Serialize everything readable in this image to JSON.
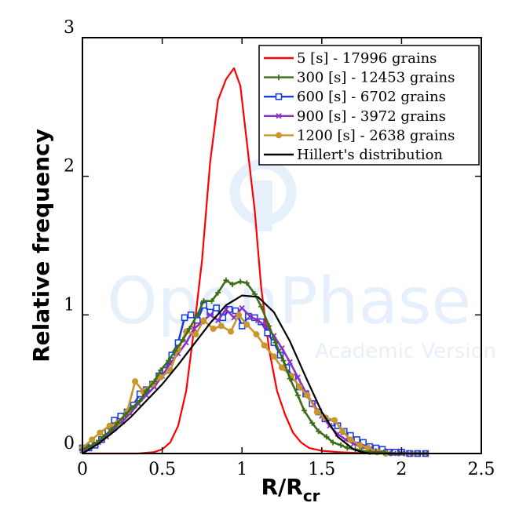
{
  "chart_data": {
    "type": "line",
    "xlabel_main": "R/R",
    "xlabel_sub": "cr",
    "ylabel": "Relative frequency",
    "xlim": [
      0,
      2.5
    ],
    "ylim": [
      0,
      3
    ],
    "x_ticks": [
      0,
      0.5,
      1,
      1.5,
      2,
      2.5
    ],
    "x_tick_labels": [
      "0",
      "0.5",
      "1",
      "1.5",
      "2",
      "2.5"
    ],
    "y_ticks": [
      0,
      1,
      2,
      3
    ],
    "y_tick_labels": [
      "0",
      "1",
      "2",
      "3"
    ],
    "legend_position": "top-right",
    "watermark": {
      "title": "OpenPhase",
      "subtitle": "Academic Version"
    },
    "series": [
      {
        "name": "5 [s] - 17996 grains",
        "color": "#ff0000",
        "marker": "none",
        "x": [
          0,
          0.2,
          0.35,
          0.45,
          0.5,
          0.55,
          0.6,
          0.65,
          0.7,
          0.75,
          0.8,
          0.85,
          0.9,
          0.95,
          0.99,
          1.03,
          1.08,
          1.12,
          1.17,
          1.22,
          1.27,
          1.32,
          1.37,
          1.42,
          1.5,
          1.6,
          1.8,
          2.0
        ],
        "y": [
          0,
          0,
          0,
          0.01,
          0.03,
          0.08,
          0.2,
          0.45,
          0.9,
          1.4,
          2.1,
          2.55,
          2.7,
          2.78,
          2.65,
          2.25,
          1.75,
          1.2,
          0.75,
          0.45,
          0.28,
          0.15,
          0.08,
          0.04,
          0.02,
          0.01,
          0,
          0
        ]
      },
      {
        "name": "300 [s] - 12453 grains",
        "color": "#3b6e14",
        "marker": "plus",
        "x": [
          0,
          0.04,
          0.09,
          0.13,
          0.18,
          0.22,
          0.27,
          0.31,
          0.36,
          0.4,
          0.45,
          0.49,
          0.54,
          0.58,
          0.63,
          0.67,
          0.72,
          0.76,
          0.81,
          0.85,
          0.9,
          0.94,
          0.99,
          1.03,
          1.08,
          1.12,
          1.17,
          1.21,
          1.26,
          1.3,
          1.35,
          1.39,
          1.44,
          1.48,
          1.53,
          1.57,
          1.62,
          1.66,
          1.71,
          1.75,
          1.8,
          1.84,
          1.89,
          1.93,
          1.98,
          2.02,
          2.07,
          2.11,
          2.16
        ],
        "y": [
          0.03,
          0.05,
          0.08,
          0.12,
          0.17,
          0.22,
          0.28,
          0.33,
          0.38,
          0.45,
          0.52,
          0.6,
          0.67,
          0.74,
          0.82,
          0.9,
          1.0,
          1.1,
          1.1,
          1.16,
          1.25,
          1.22,
          1.24,
          1.23,
          1.15,
          1.06,
          0.92,
          0.8,
          0.67,
          0.54,
          0.42,
          0.31,
          0.22,
          0.16,
          0.12,
          0.08,
          0.06,
          0.04,
          0.03,
          0.02,
          0.01,
          0.01,
          0.01,
          0,
          0,
          0,
          0,
          0,
          0
        ]
      },
      {
        "name": "600 [s] - 6702 grains",
        "color": "#1a3fe0",
        "marker": "square",
        "x": [
          0,
          0.04,
          0.08,
          0.12,
          0.16,
          0.2,
          0.24,
          0.28,
          0.32,
          0.36,
          0.4,
          0.44,
          0.48,
          0.52,
          0.56,
          0.6,
          0.64,
          0.68,
          0.72,
          0.76,
          0.8,
          0.84,
          0.88,
          0.92,
          0.96,
          1.0,
          1.04,
          1.08,
          1.12,
          1.16,
          1.2,
          1.24,
          1.28,
          1.32,
          1.36,
          1.4,
          1.44,
          1.48,
          1.52,
          1.56,
          1.6,
          1.64,
          1.68,
          1.72,
          1.76,
          1.8,
          1.84,
          1.88,
          1.92,
          1.96,
          2.0,
          2.05,
          2.1,
          2.15
        ],
        "y": [
          0.04,
          0.04,
          0.06,
          0.1,
          0.16,
          0.24,
          0.27,
          0.3,
          0.35,
          0.43,
          0.46,
          0.5,
          0.56,
          0.6,
          0.71,
          0.8,
          0.98,
          1.0,
          0.96,
          1.07,
          1.02,
          1.05,
          0.98,
          1.04,
          1.03,
          0.92,
          0.99,
          0.98,
          0.95,
          0.87,
          0.8,
          0.71,
          0.62,
          0.55,
          0.48,
          0.43,
          0.36,
          0.3,
          0.25,
          0.22,
          0.2,
          0.16,
          0.13,
          0.1,
          0.08,
          0.05,
          0.04,
          0.03,
          0.01,
          0.01,
          0.01,
          0,
          0,
          0
        ]
      },
      {
        "name": "900 [s] - 3972 grains",
        "color": "#8b2fc9",
        "marker": "x",
        "x": [
          0,
          0.05,
          0.1,
          0.15,
          0.2,
          0.25,
          0.3,
          0.35,
          0.4,
          0.45,
          0.5,
          0.55,
          0.6,
          0.65,
          0.7,
          0.75,
          0.8,
          0.85,
          0.9,
          0.95,
          1.0,
          1.05,
          1.1,
          1.15,
          1.2,
          1.25,
          1.3,
          1.35,
          1.4,
          1.45,
          1.5,
          1.55,
          1.6,
          1.65,
          1.7,
          1.75,
          1.8,
          1.85,
          1.9,
          1.95,
          2.0,
          2.05,
          2.1,
          2.15
        ],
        "y": [
          0.02,
          0.05,
          0.08,
          0.12,
          0.18,
          0.23,
          0.29,
          0.36,
          0.42,
          0.48,
          0.56,
          0.65,
          0.72,
          0.8,
          0.9,
          0.95,
          1.0,
          0.96,
          1.04,
          0.98,
          1.05,
          0.99,
          0.96,
          0.92,
          0.85,
          0.76,
          0.66,
          0.55,
          0.44,
          0.35,
          0.27,
          0.2,
          0.14,
          0.1,
          0.07,
          0.05,
          0.03,
          0.02,
          0.01,
          0,
          0,
          0,
          0,
          0
        ]
      },
      {
        "name": "1200 [s] - 2638 grains",
        "color": "#c8962a",
        "marker": "circle",
        "x": [
          0,
          0.06,
          0.11,
          0.17,
          0.22,
          0.28,
          0.33,
          0.38,
          0.44,
          0.49,
          0.55,
          0.6,
          0.65,
          0.71,
          0.76,
          0.82,
          0.87,
          0.93,
          0.98,
          1.03,
          1.09,
          1.14,
          1.2,
          1.25,
          1.31,
          1.36,
          1.41,
          1.47,
          1.52,
          1.58,
          1.63,
          1.68,
          1.74,
          1.79,
          1.85,
          1.9
        ],
        "y": [
          0.04,
          0.1,
          0.15,
          0.2,
          0.22,
          0.3,
          0.52,
          0.45,
          0.5,
          0.55,
          0.6,
          0.75,
          0.88,
          0.86,
          0.96,
          0.9,
          0.92,
          0.88,
          1.0,
          0.93,
          0.86,
          0.78,
          0.7,
          0.62,
          0.56,
          0.48,
          0.42,
          0.3,
          0.26,
          0.24,
          0.16,
          0.1,
          0.06,
          0.04,
          0.01,
          0
        ]
      },
      {
        "name": "Hillert's distribution",
        "color": "#000000",
        "marker": "none",
        "x": [
          0,
          0.1,
          0.2,
          0.3,
          0.4,
          0.5,
          0.6,
          0.7,
          0.8,
          0.9,
          1.0,
          1.1,
          1.2,
          1.3,
          1.4,
          1.5,
          1.6,
          1.7,
          1.75,
          1.8,
          1.9,
          2.0
        ],
        "y": [
          0,
          0.07,
          0.16,
          0.26,
          0.38,
          0.5,
          0.64,
          0.79,
          0.94,
          1.07,
          1.14,
          1.13,
          1.02,
          0.81,
          0.55,
          0.3,
          0.12,
          0.03,
          0.01,
          0,
          0,
          0
        ]
      }
    ]
  }
}
